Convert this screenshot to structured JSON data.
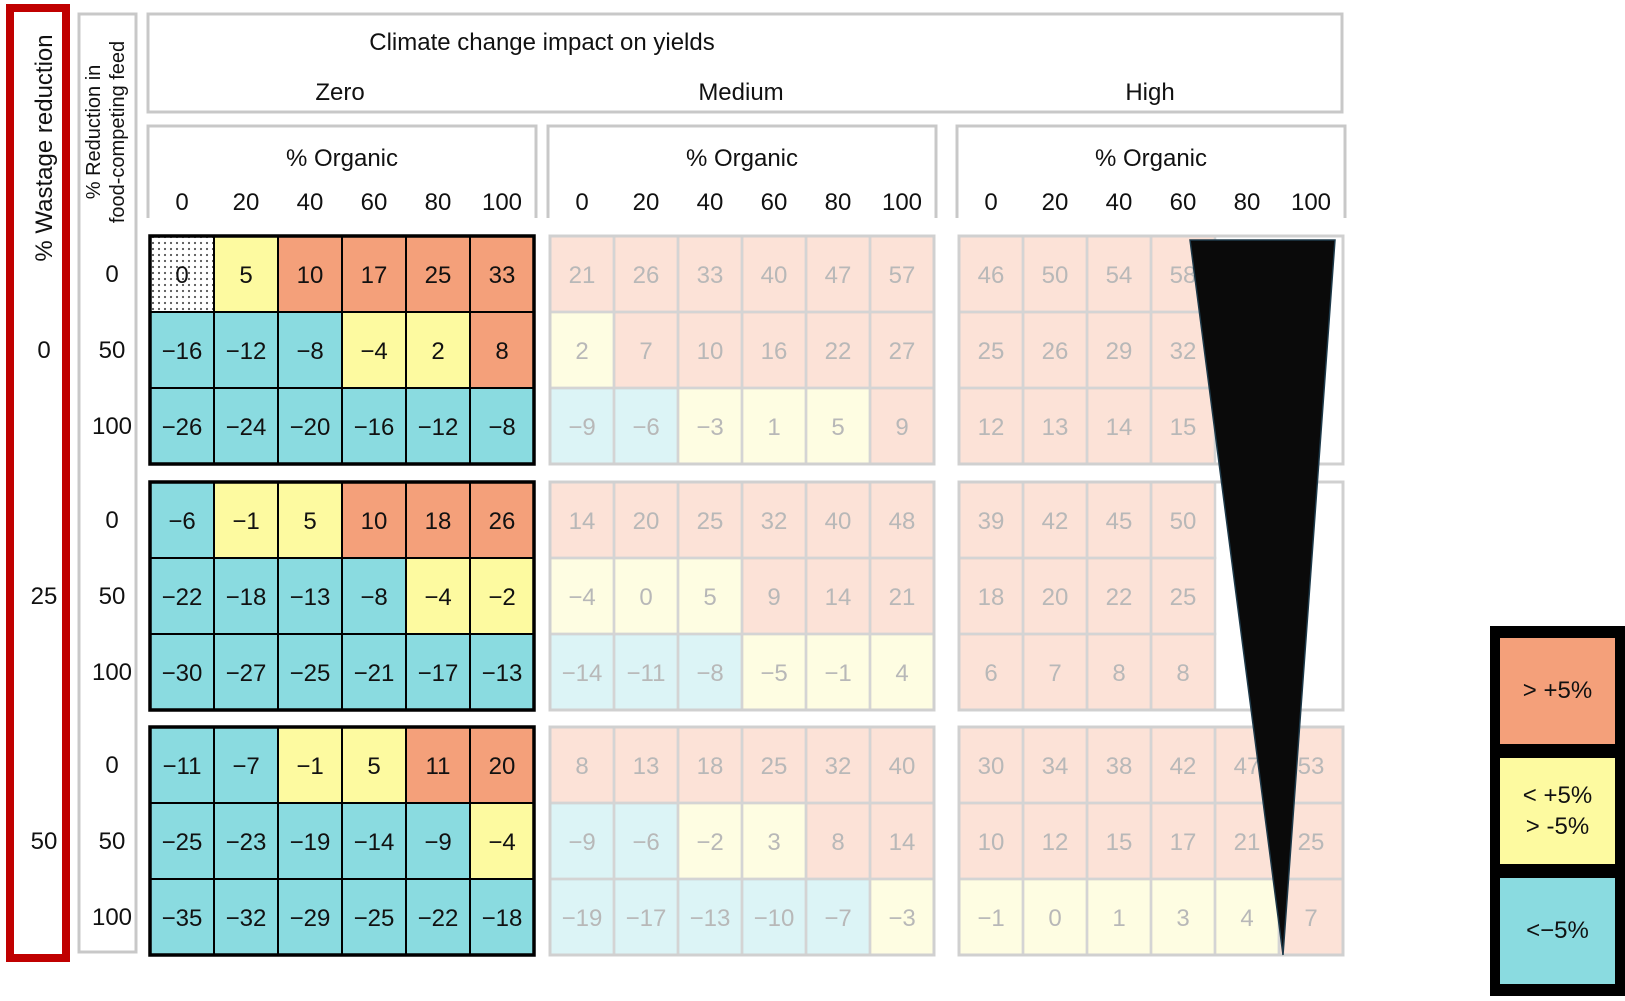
{
  "chart_data": {
    "type": "heatmap",
    "title": "Climate change impact on yields",
    "climate_scenarios": [
      "Zero",
      "Medium",
      "High"
    ],
    "organic_axis_label": "% Organic",
    "organic_levels": [
      "0",
      "20",
      "40",
      "60",
      "80",
      "100"
    ],
    "feed_axis_label": "% Reduction in food-competing feed",
    "feed_levels": [
      "0",
      "50",
      "100"
    ],
    "wastage_axis_label": "% Wastage reduction",
    "wastage_levels": [
      "0",
      "25",
      "50"
    ],
    "panels": [
      [
        [
          [
            0,
            5,
            10,
            17,
            25,
            33
          ],
          [
            -16,
            -12,
            -8,
            -4,
            2,
            8
          ],
          [
            -26,
            -24,
            -20,
            -16,
            -12,
            -8
          ]
        ],
        [
          [
            -6,
            -1,
            5,
            10,
            18,
            26
          ],
          [
            -22,
            -18,
            -13,
            -8,
            -4,
            -2
          ],
          [
            -30,
            -27,
            -25,
            -21,
            -17,
            -13
          ]
        ],
        [
          [
            -11,
            -7,
            -1,
            5,
            11,
            20
          ],
          [
            -25,
            -23,
            -19,
            -14,
            -9,
            -4
          ],
          [
            -35,
            -32,
            -29,
            -25,
            -22,
            -18
          ]
        ]
      ],
      [
        [
          [
            21,
            26,
            33,
            40,
            47,
            57
          ],
          [
            2,
            7,
            10,
            16,
            22,
            27
          ],
          [
            -9,
            -6,
            -3,
            1,
            5,
            9
          ]
        ],
        [
          [
            14,
            20,
            25,
            32,
            40,
            48
          ],
          [
            -4,
            0,
            5,
            9,
            14,
            21
          ],
          [
            -14,
            -11,
            -8,
            -5,
            -1,
            4
          ]
        ],
        [
          [
            8,
            13,
            18,
            25,
            32,
            40
          ],
          [
            -9,
            -6,
            -2,
            3,
            8,
            14
          ],
          [
            -19,
            -17,
            -13,
            -10,
            -7,
            -3
          ]
        ]
      ],
      [
        [
          [
            46,
            50,
            54,
            58,
            null,
            null
          ],
          [
            25,
            26,
            29,
            32,
            null,
            null
          ],
          [
            12,
            13,
            14,
            15,
            null,
            null
          ]
        ],
        [
          [
            39,
            42,
            45,
            50,
            null,
            null
          ],
          [
            18,
            20,
            22,
            25,
            null,
            null
          ],
          [
            6,
            7,
            8,
            8,
            null,
            null
          ]
        ],
        [
          [
            30,
            34,
            38,
            42,
            47,
            53
          ],
          [
            10,
            12,
            15,
            17,
            21,
            25
          ],
          [
            -1,
            0,
            1,
            3,
            4,
            7
          ]
        ]
      ]
    ],
    "legend": [
      {
        "label": "> +5%",
        "color": "#f4a07a"
      },
      {
        "label": "< +5%\n>  -5%",
        "color": "#fdfaa0"
      },
      {
        "label": "<−5%",
        "color": "#8adbe0"
      }
    ],
    "colors": {
      "high": "#f4a07a",
      "mid": "#fdfaa0",
      "low": "#8adbe0",
      "baseline": "#ffffff",
      "highlight": "#c00000",
      "wedge": "#0a0a0a"
    }
  }
}
